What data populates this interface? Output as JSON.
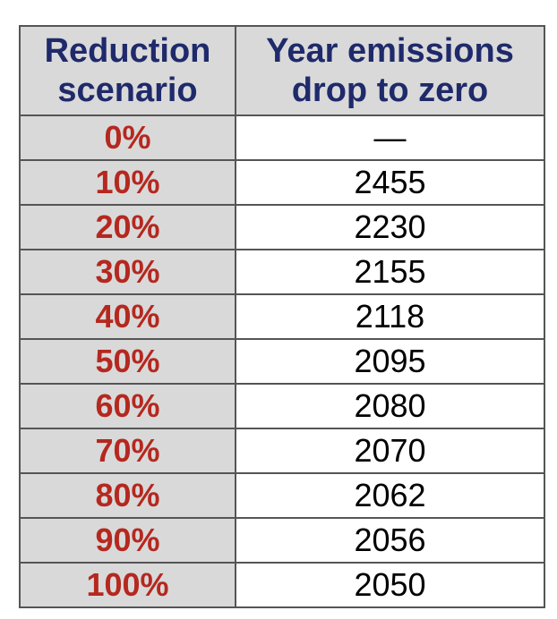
{
  "chart_data": {
    "type": "table",
    "columns": [
      [
        "Reduction",
        "scenario"
      ],
      [
        "Year emissions",
        "drop to zero"
      ]
    ],
    "rows": [
      [
        "0%",
        "—"
      ],
      [
        "10%",
        "2455"
      ],
      [
        "20%",
        "2230"
      ],
      [
        "30%",
        "2155"
      ],
      [
        "40%",
        "2118"
      ],
      [
        "50%",
        "2095"
      ],
      [
        "60%",
        "2080"
      ],
      [
        "70%",
        "2070"
      ],
      [
        "80%",
        "2062"
      ],
      [
        "90%",
        "2056"
      ],
      [
        "100%",
        "2050"
      ]
    ]
  },
  "colors": {
    "header_text": "#1f2a6b",
    "scenario_text": "#b5281f",
    "shaded_background": "#d9d9d9",
    "border": "#555555"
  }
}
